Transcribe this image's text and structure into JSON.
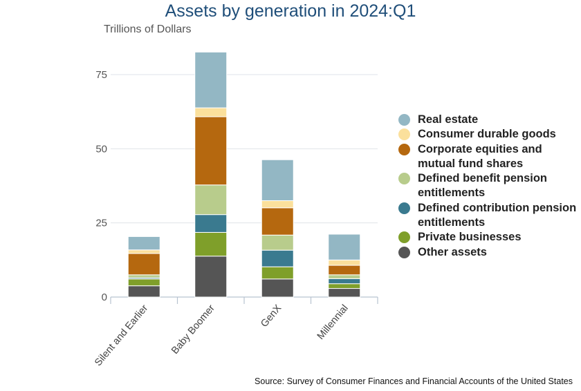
{
  "chart_data": {
    "type": "bar",
    "stacked": true,
    "title": "Assets by generation in 2024:Q1",
    "ylabel": "Trillions of Dollars",
    "ylim": [
      0,
      83
    ],
    "yticks": [
      0,
      25,
      50,
      75
    ],
    "grid": true,
    "legend_position": "right",
    "categories": [
      "Silent and Earlier",
      "Baby Boomer",
      "GenX",
      "Millennial"
    ],
    "series": [
      {
        "name": "Other assets",
        "color": "#555555",
        "values": [
          3.8,
          13.8,
          6.1,
          2.9
        ]
      },
      {
        "name": "Private businesses",
        "color": "#7f9f2a",
        "values": [
          2.3,
          8.0,
          4.1,
          1.6
        ]
      },
      {
        "name": "Defined contribution pension entitlements",
        "color": "#3a7a8f",
        "values": [
          0.4,
          6.0,
          5.6,
          1.7
        ]
      },
      {
        "name": "Defined benefit pension entitlements",
        "color": "#b8cc8c",
        "values": [
          1.0,
          10.0,
          5.1,
          1.3
        ]
      },
      {
        "name": "Corporate equities and mutual fund shares",
        "color": "#b5680f",
        "values": [
          7.2,
          23.0,
          9.2,
          3.2
        ]
      },
      {
        "name": "Consumer durable goods",
        "color": "#fbe09c",
        "values": [
          1.2,
          3.0,
          2.4,
          1.8
        ]
      },
      {
        "name": "Real estate",
        "color": "#93b7c4",
        "values": [
          4.5,
          18.8,
          13.8,
          8.7
        ]
      }
    ],
    "legend_order": [
      "Real estate",
      "Consumer durable goods",
      "Corporate equities and mutual fund shares",
      "Defined benefit pension entitlements",
      "Defined contribution pension entitlements",
      "Private businesses",
      "Other assets"
    ]
  },
  "source": "Source: Survey of Consumer Finances and Financial Accounts of the United States"
}
